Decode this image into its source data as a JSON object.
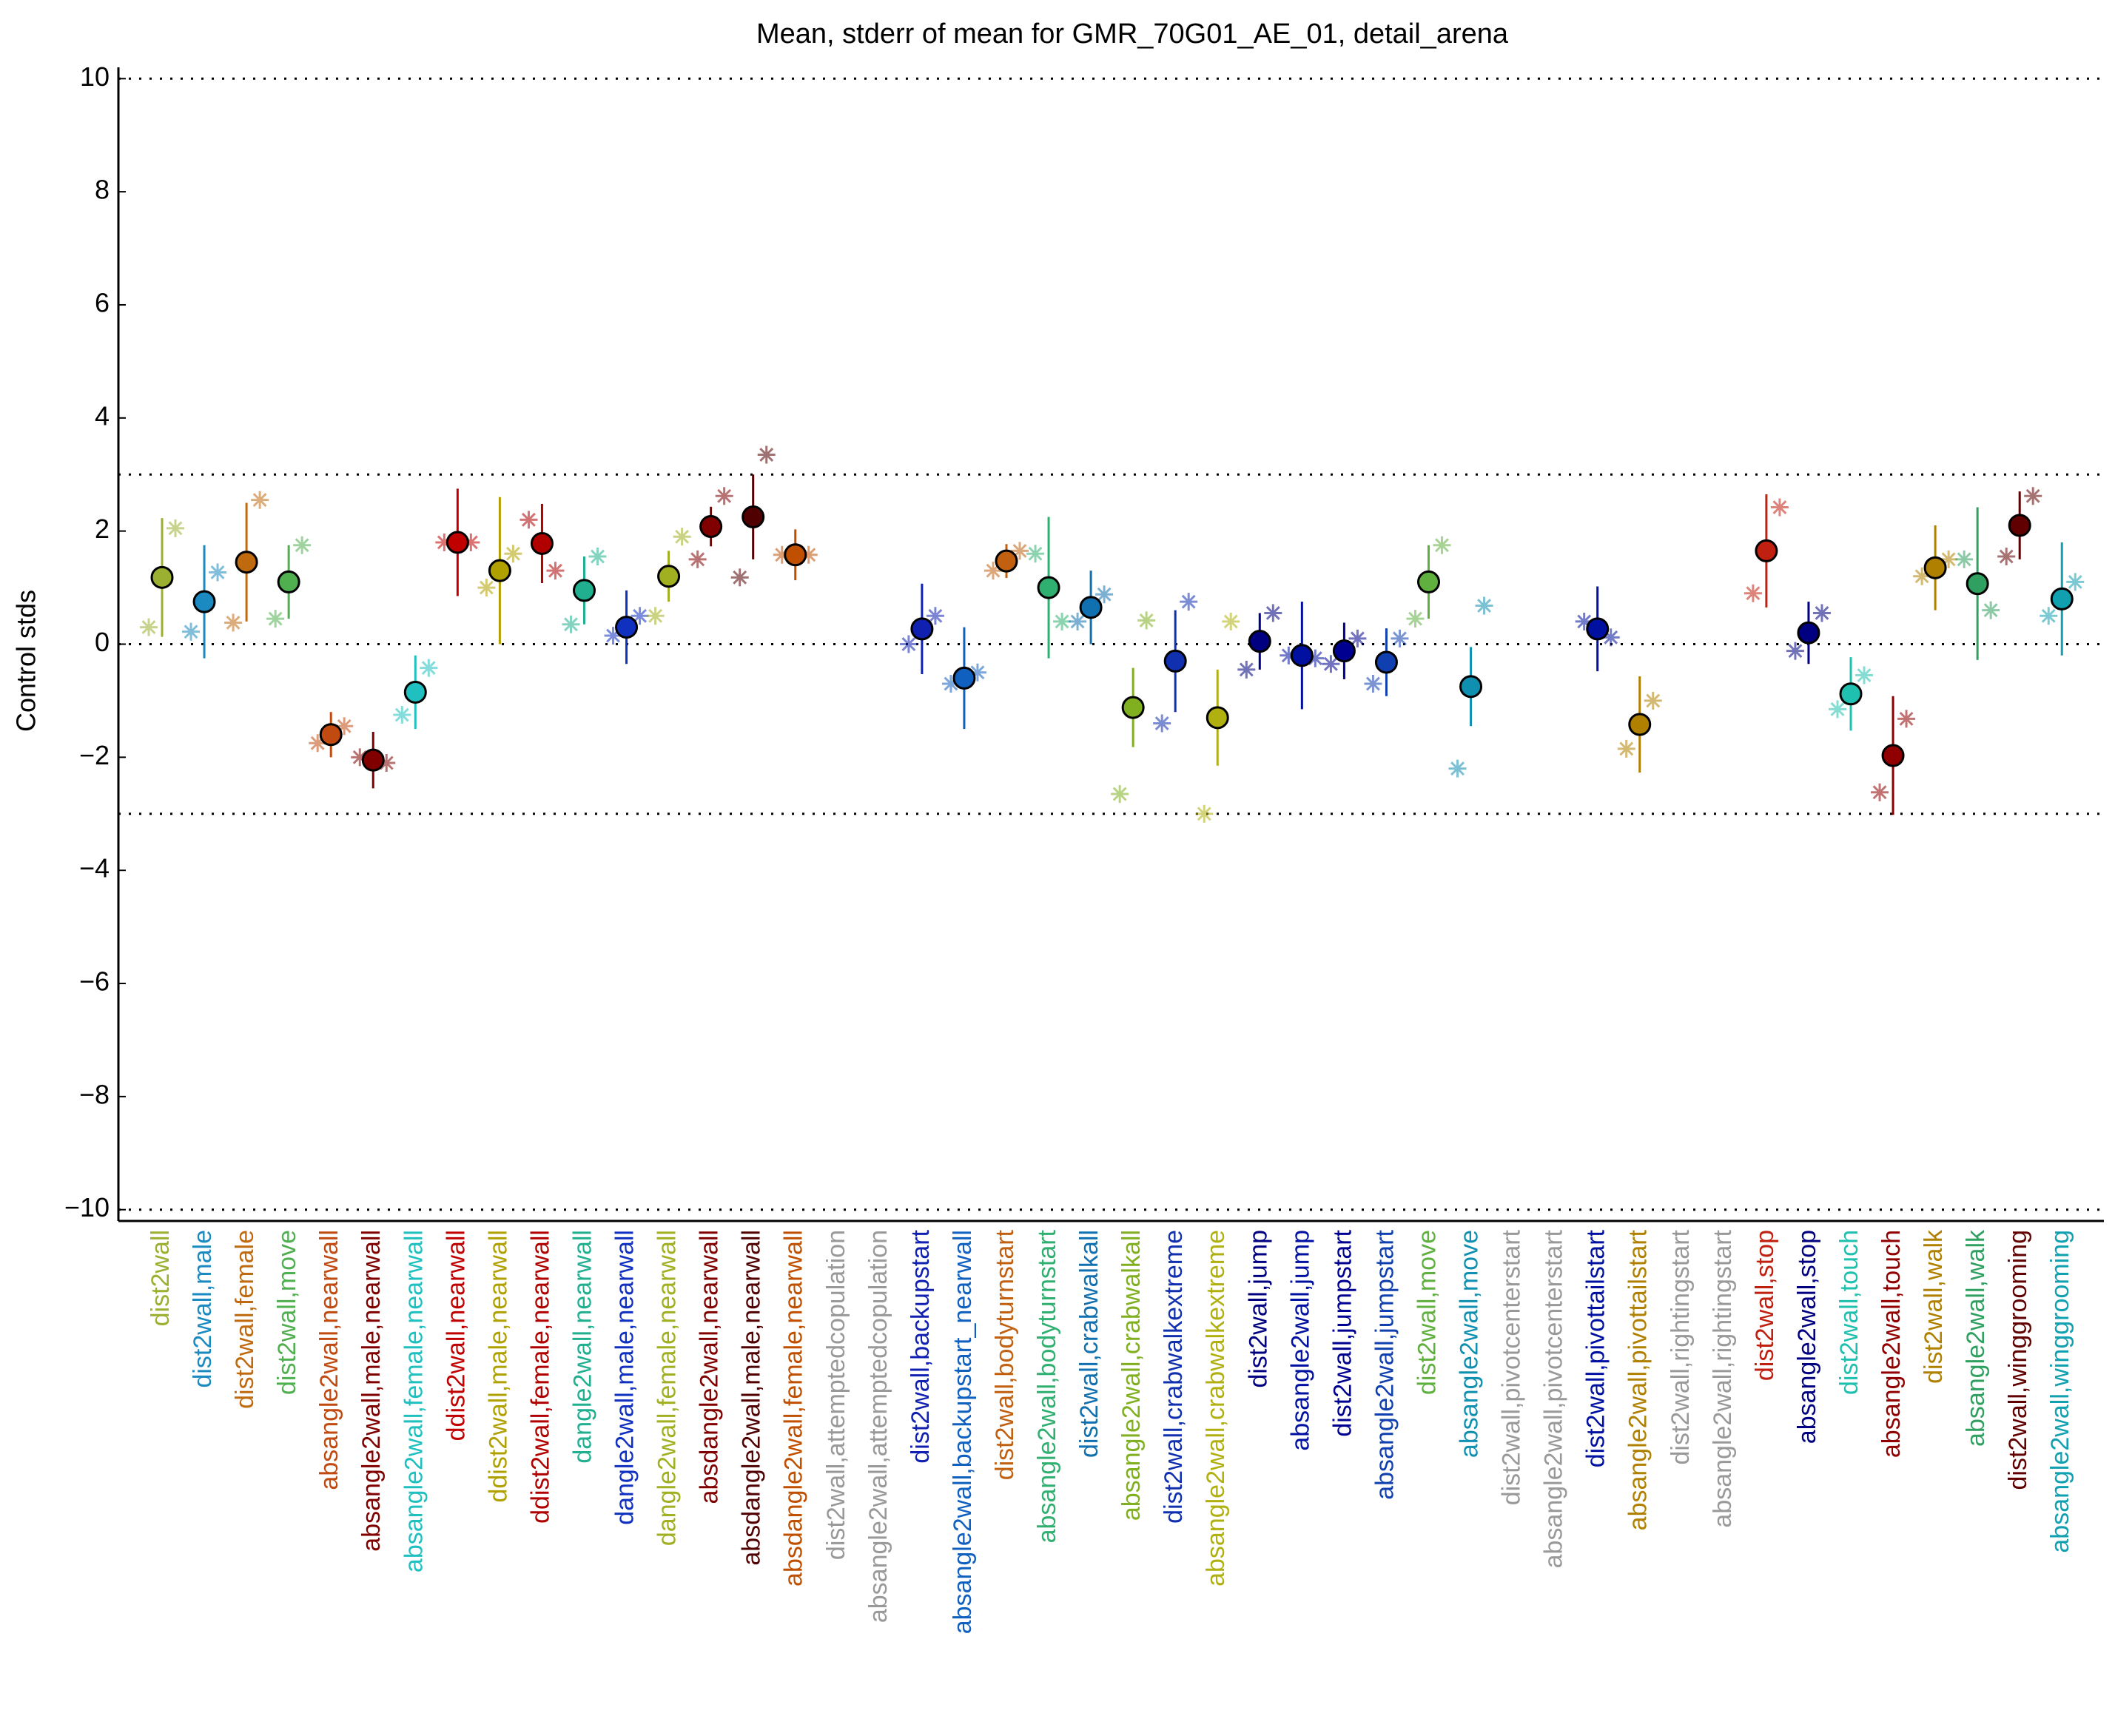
{
  "chart_data": {
    "type": "errorbar",
    "title": "Mean, stderr of mean for GMR_70G01_AE_01, detail_arena",
    "ylabel": "Control stds",
    "categories": [
      "dist2wall",
      "dist2wall,male",
      "dist2wall,female",
      "dist2wall,move",
      "absangle2wall,nearwall",
      "absangle2wall,male,nearwall",
      "absangle2wall,female,nearwall",
      "ddist2wall,nearwall",
      "ddist2wall,male,nearwall",
      "ddist2wall,female,nearwall",
      "dangle2wall,nearwall",
      "dangle2wall,male,nearwall",
      "dangle2wall,female,nearwall",
      "absdangle2wall,nearwall",
      "absdangle2wall,male,nearwall",
      "absdangle2wall,female,nearwall",
      "dist2wall,attemptedcopulation",
      "absangle2wall,attemptedcopulation",
      "dist2wall,backupstart",
      "absangle2wall,backupstart_nearwall",
      "dist2wall,bodyturnstart",
      "absangle2wall,bodyturnstart",
      "dist2wall,crabwalkall",
      "absangle2wall,crabwalkall",
      "dist2wall,crabwalkextreme",
      "absangle2wall,crabwalkextreme",
      "dist2wall,jump",
      "absangle2wall,jump",
      "dist2wall,jumpstart",
      "absangle2wall,jumpstart",
      "dist2wall,move",
      "absangle2wall,move",
      "dist2wall,pivotcenterstart",
      "absangle2wall,pivotcenterstart",
      "dist2wall,pivottailstart",
      "absangle2wall,pivottailstart",
      "dist2wall,rightingstart",
      "absangle2wall,rightingstart",
      "dist2wall,stop",
      "absangle2wall,stop",
      "dist2wall,touch",
      "absangle2wall,touch",
      "dist2wall,walk",
      "absangle2wall,walk",
      "dist2wall,winggrooming",
      "absangle2wall,winggrooming"
    ],
    "colors": [
      "#9bb030",
      "#1a8ac0",
      "#c06a10",
      "#50b050",
      "#c04a10",
      "#800000",
      "#20c0c0",
      "#c00000",
      "#b0a000",
      "#b00000",
      "#20b090",
      "#1030c0",
      "#a0b020",
      "#800000",
      "#500000",
      "#c05000",
      "#999999",
      "#999999",
      "#1020b0",
      "#1060c0",
      "#c06010",
      "#30b070",
      "#1070b0",
      "#80b020",
      "#1030b0",
      "#b0b010",
      "#000080",
      "#0010a0",
      "#000090",
      "#1040b0",
      "#60b040",
      "#1090b0",
      "#999999",
      "#999999",
      "#0010a0",
      "#b08000",
      "#999999",
      "#999999",
      "#c02010",
      "#000080",
      "#20c0b0",
      "#900000",
      "#b08000",
      "#30a060",
      "#600000",
      "#10a0b0"
    ],
    "values": [
      1.18,
      0.75,
      1.45,
      1.1,
      -1.6,
      -2.05,
      -0.85,
      1.8,
      1.3,
      1.78,
      0.95,
      0.3,
      1.2,
      2.08,
      2.25,
      1.58,
      null,
      null,
      0.27,
      -0.6,
      1.47,
      1.0,
      0.65,
      -1.12,
      -0.3,
      -1.3,
      0.05,
      -0.2,
      -0.12,
      -0.32,
      1.1,
      -0.75,
      null,
      null,
      0.27,
      -1.42,
      null,
      null,
      1.65,
      0.2,
      -0.88,
      -1.97,
      1.35,
      1.07,
      2.1,
      0.8
    ],
    "errors": [
      1.05,
      1.0,
      1.05,
      0.65,
      0.4,
      0.5,
      0.65,
      0.95,
      1.3,
      0.7,
      0.6,
      0.65,
      0.45,
      0.35,
      0.75,
      0.45,
      null,
      null,
      0.8,
      0.9,
      0.3,
      1.25,
      0.65,
      0.7,
      0.9,
      0.85,
      0.5,
      0.95,
      0.5,
      0.6,
      0.65,
      0.7,
      null,
      null,
      0.75,
      0.85,
      null,
      null,
      1.0,
      0.55,
      0.65,
      1.05,
      0.75,
      1.35,
      0.6,
      1.0
    ],
    "male_values": [
      0.3,
      0.22,
      0.38,
      0.45,
      -1.75,
      -2.0,
      -1.25,
      1.8,
      1.0,
      2.2,
      0.35,
      0.15,
      0.5,
      1.5,
      1.18,
      1.58,
      null,
      null,
      0.0,
      -0.7,
      1.3,
      1.6,
      0.4,
      -2.65,
      -1.4,
      -3.0,
      -0.45,
      -0.2,
      -0.35,
      -0.7,
      0.45,
      -2.2,
      null,
      null,
      0.4,
      -1.85,
      null,
      null,
      0.9,
      -0.12,
      -1.15,
      -2.62,
      1.2,
      1.5,
      1.55,
      0.5
    ],
    "female_values": [
      2.05,
      1.27,
      2.55,
      1.75,
      -1.45,
      -2.1,
      -0.42,
      1.8,
      1.6,
      1.3,
      1.55,
      0.5,
      1.9,
      2.62,
      3.35,
      1.58,
      null,
      null,
      0.5,
      -0.5,
      1.65,
      0.4,
      0.88,
      0.42,
      0.75,
      0.4,
      0.55,
      -0.25,
      0.1,
      0.1,
      1.75,
      0.68,
      null,
      null,
      0.12,
      -1.0,
      null,
      null,
      2.42,
      0.55,
      -0.55,
      -1.32,
      1.5,
      0.6,
      2.62,
      1.1
    ],
    "ylim": [
      -10.2,
      10.2
    ],
    "yticks": [
      {
        "value": -10,
        "label": "−10"
      },
      {
        "value": -8,
        "label": "−8"
      },
      {
        "value": -6,
        "label": "−6"
      },
      {
        "value": -4,
        "label": "−4"
      },
      {
        "value": -2,
        "label": "−2"
      },
      0,
      2,
      4,
      6,
      8,
      10
    ],
    "reference_lines": [
      -10,
      -3,
      0,
      3,
      10
    ]
  }
}
